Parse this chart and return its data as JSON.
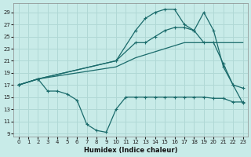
{
  "xlabel": "Humidex (Indice chaleur)",
  "background_color": "#c8ebe8",
  "grid_color": "#b0d8d5",
  "line_color": "#1a6b6b",
  "xlim": [
    -0.5,
    23.5
  ],
  "ylim": [
    8.5,
    30.5
  ],
  "xticks": [
    0,
    1,
    2,
    3,
    4,
    5,
    6,
    7,
    8,
    9,
    10,
    11,
    12,
    13,
    14,
    15,
    16,
    17,
    18,
    19,
    20,
    21,
    22,
    23
  ],
  "yticks": [
    9,
    11,
    13,
    15,
    17,
    19,
    21,
    23,
    25,
    27,
    29
  ],
  "line_upper_x": [
    0,
    2,
    10,
    12,
    13,
    14,
    15,
    16,
    17,
    18,
    19,
    20,
    21,
    22,
    23
  ],
  "line_upper_y": [
    17,
    18,
    21,
    26,
    28,
    29,
    29.5,
    29.5,
    27,
    26,
    29,
    26,
    20,
    17,
    16.5
  ],
  "line_mid_x": [
    0,
    2,
    10,
    12,
    13,
    14,
    15,
    16,
    17,
    18,
    19,
    20,
    21,
    22,
    23
  ],
  "line_mid_y": [
    17,
    18,
    21,
    24,
    24,
    25,
    26,
    26.5,
    26.5,
    26,
    24,
    24,
    20.5,
    17,
    14
  ],
  "line_diag_x": [
    0,
    2,
    10,
    12,
    13,
    14,
    15,
    16,
    17,
    18,
    19,
    20,
    21,
    22,
    23
  ],
  "line_diag_y": [
    17,
    18,
    20,
    21.5,
    22,
    22.5,
    23,
    23.5,
    24,
    24,
    24,
    24,
    24,
    24,
    24
  ],
  "line_lower_x": [
    0,
    2,
    3,
    4,
    5,
    6,
    7,
    8,
    9,
    10,
    11,
    12,
    13,
    14,
    15,
    16,
    17,
    18,
    19,
    20,
    21,
    22,
    23
  ],
  "line_lower_y": [
    17,
    18,
    16,
    16,
    15.5,
    14.5,
    10.5,
    9.5,
    9.2,
    13,
    15,
    15,
    15,
    15,
    15,
    15,
    15,
    15,
    15,
    14.8,
    14.8,
    14.2,
    14.2
  ]
}
